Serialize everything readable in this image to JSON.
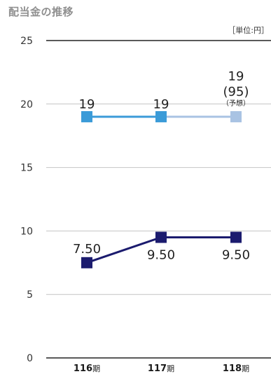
{
  "title": "配当金の推移",
  "unit": "［単位:円］",
  "chart_data": {
    "type": "line",
    "y_ticks": [
      "0",
      "5",
      "10",
      "15",
      "20",
      "25"
    ],
    "ylim": [
      0,
      25
    ],
    "categories": [
      {
        "num": "116",
        "suffix": "期"
      },
      {
        "num": "117",
        "suffix": "期"
      },
      {
        "num": "118",
        "suffix": "期"
      }
    ],
    "series": [
      {
        "values": [
          19,
          19,
          19
        ],
        "labels": [
          "19",
          "19",
          "19"
        ],
        "forecast_label": "(95)",
        "forecast_note": "（予想）",
        "color": "#3b9bd8",
        "forecast_color": "#a9c3e3"
      },
      {
        "values": [
          7.5,
          9.5,
          9.5
        ],
        "labels": [
          "7.50",
          "9.50",
          "9.50"
        ],
        "color": "#1b1b6e"
      }
    ]
  }
}
